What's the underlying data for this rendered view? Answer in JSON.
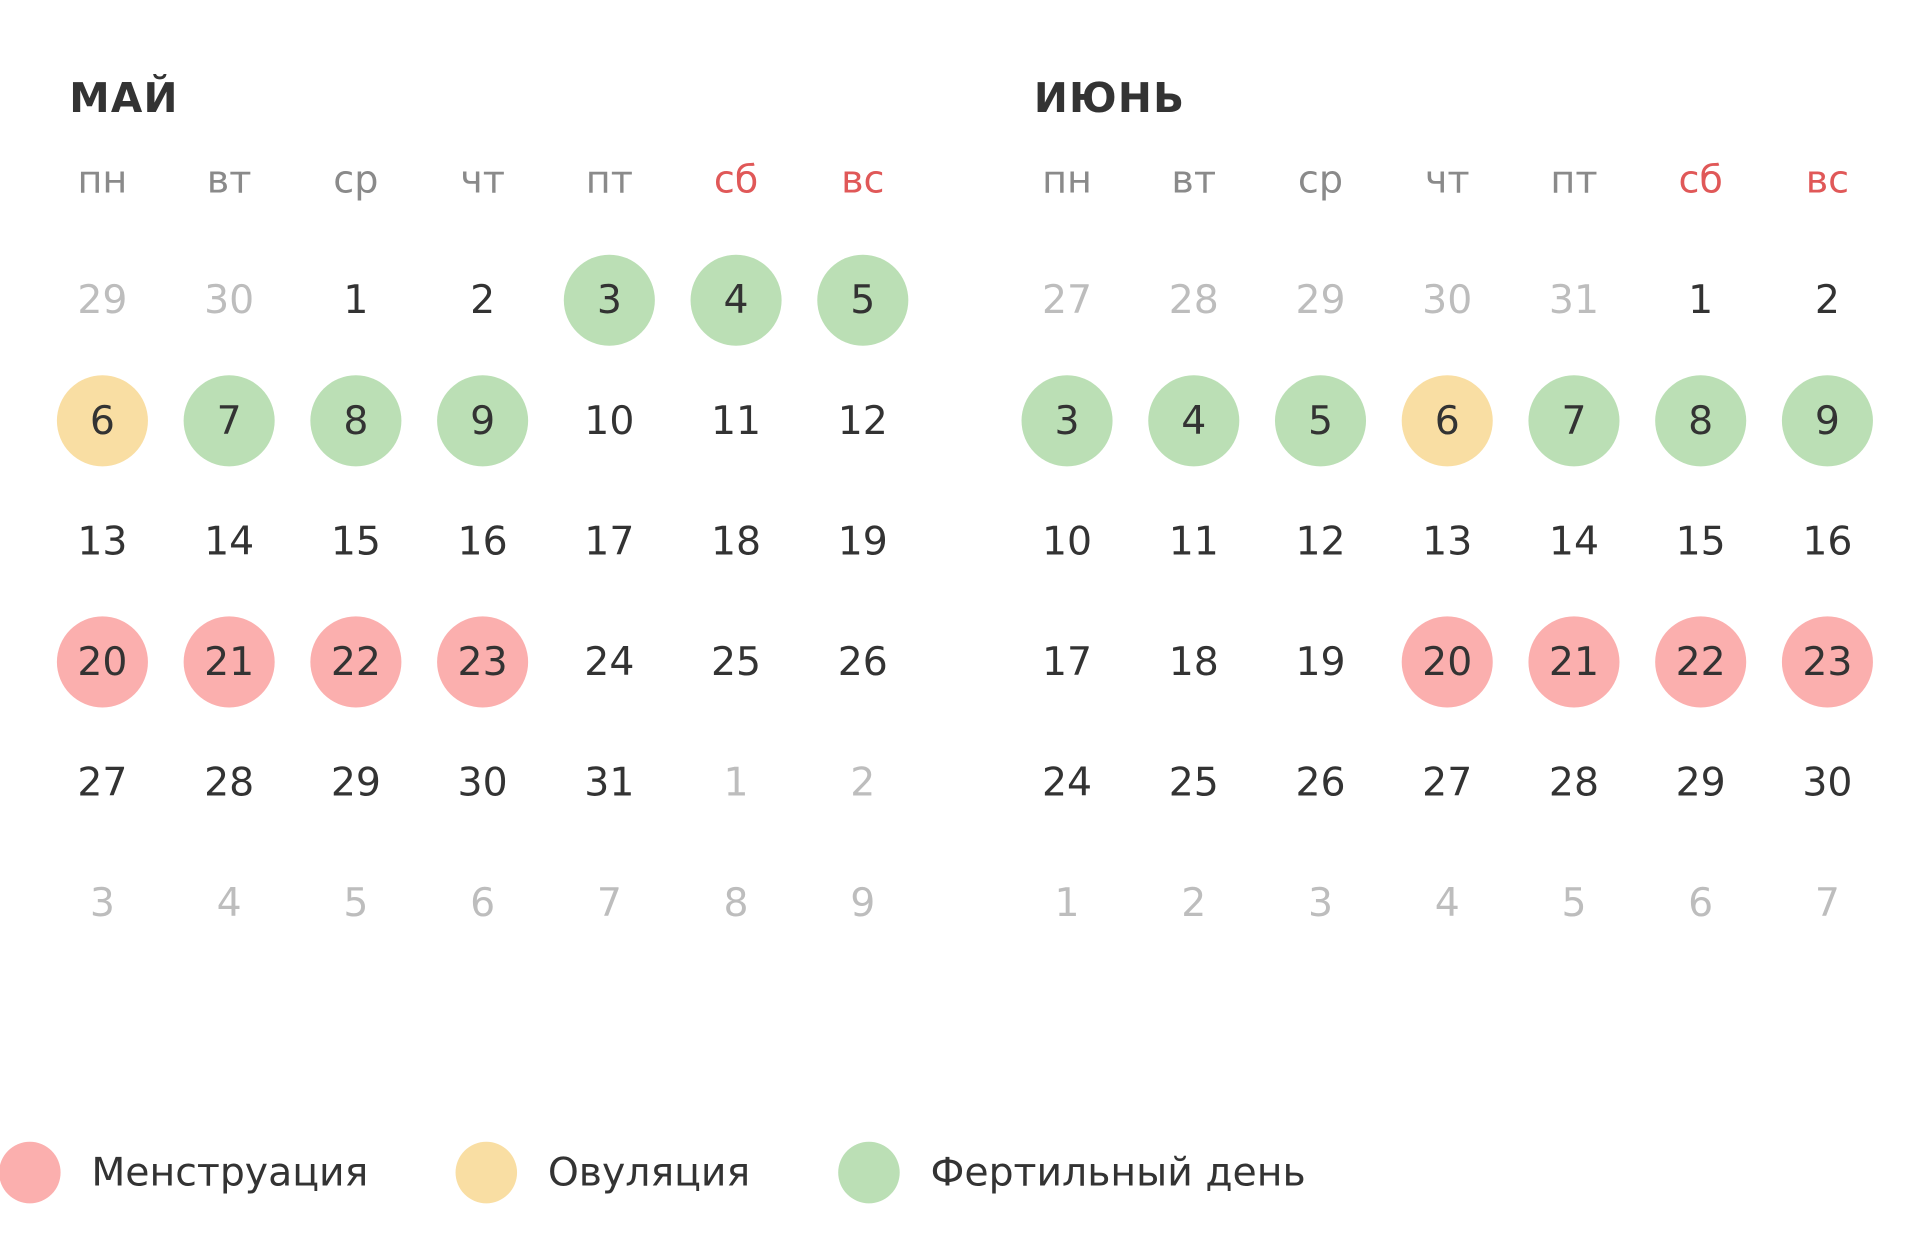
{
  "weekdays": [
    {
      "label": "пн",
      "weekend": false
    },
    {
      "label": "вт",
      "weekend": false
    },
    {
      "label": "ср",
      "weekend": false
    },
    {
      "label": "чт",
      "weekend": false
    },
    {
      "label": "пт",
      "weekend": false
    },
    {
      "label": "сб",
      "weekend": true
    },
    {
      "label": "вс",
      "weekend": true
    }
  ],
  "colors": {
    "menstruation": "#fbafae",
    "ovulation": "#f9dea3",
    "fertile": "#bbdfb5"
  },
  "months": [
    {
      "title": "МАЙ",
      "weeks": [
        [
          {
            "day": 29,
            "state": "muted"
          },
          {
            "day": 30,
            "state": "muted"
          },
          {
            "day": 1,
            "state": "normal"
          },
          {
            "day": 2,
            "state": "normal"
          },
          {
            "day": 3,
            "state": "fertile"
          },
          {
            "day": 4,
            "state": "fertile"
          },
          {
            "day": 5,
            "state": "fertile"
          }
        ],
        [
          {
            "day": 6,
            "state": "ovulation"
          },
          {
            "day": 7,
            "state": "fertile"
          },
          {
            "day": 8,
            "state": "fertile"
          },
          {
            "day": 9,
            "state": "fertile"
          },
          {
            "day": 10,
            "state": "normal"
          },
          {
            "day": 11,
            "state": "normal"
          },
          {
            "day": 12,
            "state": "normal"
          }
        ],
        [
          {
            "day": 13,
            "state": "normal"
          },
          {
            "day": 14,
            "state": "normal"
          },
          {
            "day": 15,
            "state": "normal"
          },
          {
            "day": 16,
            "state": "normal"
          },
          {
            "day": 17,
            "state": "normal"
          },
          {
            "day": 18,
            "state": "normal"
          },
          {
            "day": 19,
            "state": "normal"
          }
        ],
        [
          {
            "day": 20,
            "state": "menstruation"
          },
          {
            "day": 21,
            "state": "menstruation"
          },
          {
            "day": 22,
            "state": "menstruation"
          },
          {
            "day": 23,
            "state": "menstruation"
          },
          {
            "day": 24,
            "state": "normal"
          },
          {
            "day": 25,
            "state": "normal"
          },
          {
            "day": 26,
            "state": "normal"
          }
        ],
        [
          {
            "day": 27,
            "state": "normal"
          },
          {
            "day": 28,
            "state": "normal"
          },
          {
            "day": 29,
            "state": "normal"
          },
          {
            "day": 30,
            "state": "normal"
          },
          {
            "day": 31,
            "state": "normal"
          },
          {
            "day": 1,
            "state": "muted"
          },
          {
            "day": 2,
            "state": "muted"
          }
        ],
        [
          {
            "day": 3,
            "state": "muted"
          },
          {
            "day": 4,
            "state": "muted"
          },
          {
            "day": 5,
            "state": "muted"
          },
          {
            "day": 6,
            "state": "muted"
          },
          {
            "day": 7,
            "state": "muted"
          },
          {
            "day": 8,
            "state": "muted"
          },
          {
            "day": 9,
            "state": "muted"
          }
        ]
      ]
    },
    {
      "title": "ИЮНЬ",
      "weeks": [
        [
          {
            "day": 27,
            "state": "muted"
          },
          {
            "day": 28,
            "state": "muted"
          },
          {
            "day": 29,
            "state": "muted"
          },
          {
            "day": 30,
            "state": "muted"
          },
          {
            "day": 31,
            "state": "muted"
          },
          {
            "day": 1,
            "state": "normal"
          },
          {
            "day": 2,
            "state": "normal"
          }
        ],
        [
          {
            "day": 3,
            "state": "fertile"
          },
          {
            "day": 4,
            "state": "fertile"
          },
          {
            "day": 5,
            "state": "fertile"
          },
          {
            "day": 6,
            "state": "ovulation"
          },
          {
            "day": 7,
            "state": "fertile"
          },
          {
            "day": 8,
            "state": "fertile"
          },
          {
            "day": 9,
            "state": "fertile"
          }
        ],
        [
          {
            "day": 10,
            "state": "normal"
          },
          {
            "day": 11,
            "state": "normal"
          },
          {
            "day": 12,
            "state": "normal"
          },
          {
            "day": 13,
            "state": "normal"
          },
          {
            "day": 14,
            "state": "normal"
          },
          {
            "day": 15,
            "state": "normal"
          },
          {
            "day": 16,
            "state": "normal"
          }
        ],
        [
          {
            "day": 17,
            "state": "normal"
          },
          {
            "day": 18,
            "state": "normal"
          },
          {
            "day": 19,
            "state": "normal"
          },
          {
            "day": 20,
            "state": "menstruation"
          },
          {
            "day": 21,
            "state": "menstruation"
          },
          {
            "day": 22,
            "state": "menstruation"
          },
          {
            "day": 23,
            "state": "menstruation"
          }
        ],
        [
          {
            "day": 24,
            "state": "normal"
          },
          {
            "day": 25,
            "state": "normal"
          },
          {
            "day": 26,
            "state": "normal"
          },
          {
            "day": 27,
            "state": "normal"
          },
          {
            "day": 28,
            "state": "normal"
          },
          {
            "day": 29,
            "state": "normal"
          },
          {
            "day": 30,
            "state": "normal"
          }
        ],
        [
          {
            "day": 1,
            "state": "muted"
          },
          {
            "day": 2,
            "state": "muted"
          },
          {
            "day": 3,
            "state": "muted"
          },
          {
            "day": 4,
            "state": "muted"
          },
          {
            "day": 5,
            "state": "muted"
          },
          {
            "day": 6,
            "state": "muted"
          },
          {
            "day": 7,
            "state": "muted"
          }
        ]
      ]
    }
  ],
  "legend": [
    {
      "label": "Менструация",
      "mark": "menstruation"
    },
    {
      "label": "Овуляция",
      "mark": "ovulation"
    },
    {
      "label": "Фертильный день",
      "mark": "fertile"
    }
  ]
}
